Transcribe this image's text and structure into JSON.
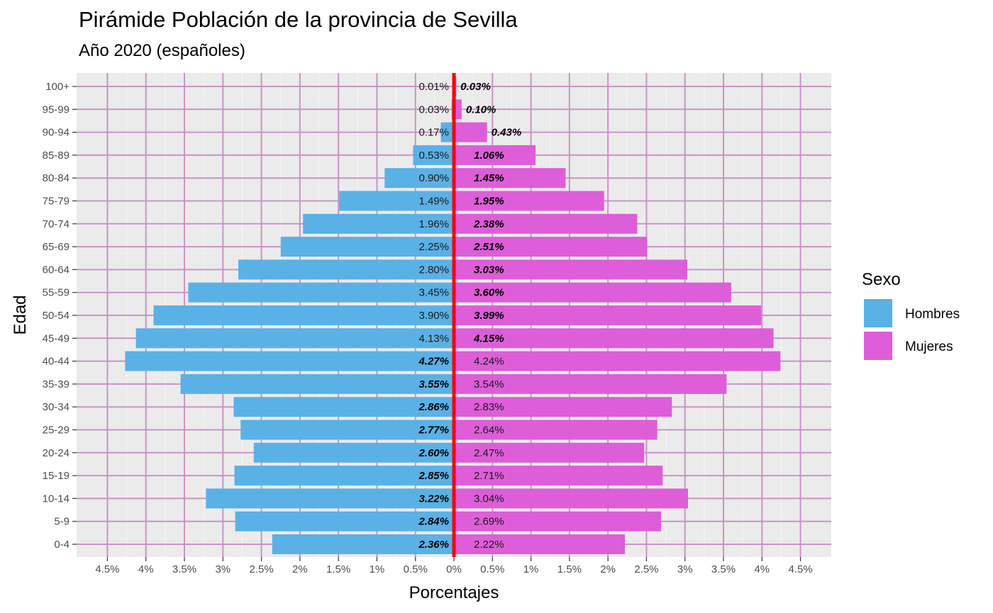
{
  "title": "Pirámide Población de la provincia de Sevilla",
  "subtitle": "Año 2020  (españoles)",
  "colors": {
    "hombres": "#5ab1e6",
    "mujeres": "#dd5ed8",
    "center_line": "#ff0000",
    "grid": "#c994c7",
    "panel_bg": "#ebebeb"
  },
  "chart_data": {
    "type": "bar",
    "orientation": "horizontal-population-pyramid",
    "title": "Pirámide Población de la provincia de Sevilla",
    "subtitle": "Año 2020  (españoles)",
    "xlabel": "Porcentajes",
    "ylabel": "Edad",
    "xlim": [
      -4.9,
      4.9
    ],
    "x_ticks": [
      -4.5,
      -4,
      -3.5,
      -3,
      -2.5,
      -2,
      -1.5,
      -1,
      -0.5,
      0,
      0.5,
      1,
      1.5,
      2,
      2.5,
      3,
      3.5,
      4,
      4.5
    ],
    "x_tick_labels": [
      "4.5%",
      "4%",
      "3.5%",
      "3%",
      "2.5%",
      "2%",
      "1.5%",
      "1%",
      "0.5%",
      "0%",
      "0.5%",
      "1%",
      "1.5%",
      "2%",
      "2.5%",
      "3%",
      "3.5%",
      "4%",
      "4.5%"
    ],
    "categories": [
      "0-4",
      "5-9",
      "10-14",
      "15-19",
      "20-24",
      "25-29",
      "30-34",
      "35-39",
      "40-44",
      "45-49",
      "50-54",
      "55-59",
      "60-64",
      "65-69",
      "70-74",
      "75-79",
      "80-84",
      "85-89",
      "90-94",
      "95-99",
      "100+"
    ],
    "series": [
      {
        "name": "Hombres",
        "values": [
          2.36,
          2.84,
          3.22,
          2.85,
          2.6,
          2.77,
          2.86,
          3.55,
          4.27,
          4.13,
          3.9,
          3.45,
          2.8,
          2.25,
          1.96,
          1.49,
          0.9,
          0.53,
          0.17,
          0.03,
          0.01
        ],
        "labels": [
          "2.36%",
          "2.84%",
          "3.22%",
          "2.85%",
          "2.60%",
          "2.77%",
          "2.86%",
          "3.55%",
          "4.27%",
          "4.13%",
          "3.90%",
          "3.45%",
          "2.80%",
          "2.25%",
          "1.96%",
          "1.49%",
          "0.90%",
          "0.53%",
          "0.17%",
          "0.03%",
          "0.01%"
        ],
        "label_bold": [
          true,
          true,
          true,
          true,
          true,
          true,
          true,
          true,
          true,
          false,
          false,
          false,
          false,
          false,
          false,
          false,
          false,
          false,
          false,
          false,
          false
        ]
      },
      {
        "name": "Mujeres",
        "values": [
          2.22,
          2.69,
          3.04,
          2.71,
          2.47,
          2.64,
          2.83,
          3.54,
          4.24,
          4.15,
          3.99,
          3.6,
          3.03,
          2.51,
          2.38,
          1.95,
          1.45,
          1.06,
          0.43,
          0.1,
          0.03
        ],
        "labels": [
          "2.22%",
          "2.69%",
          "3.04%",
          "2.71%",
          "2.47%",
          "2.64%",
          "2.83%",
          "3.54%",
          "4.24%",
          "4.15%",
          "3.99%",
          "3.60%",
          "3.03%",
          "2.51%",
          "2.38%",
          "1.95%",
          "1.45%",
          "1.06%",
          "0.43%",
          "0.10%",
          "0.03%"
        ],
        "label_bold": [
          false,
          false,
          false,
          false,
          false,
          false,
          false,
          false,
          false,
          true,
          true,
          true,
          true,
          true,
          true,
          true,
          true,
          true,
          true,
          true,
          true
        ]
      }
    ],
    "legend": {
      "title": "Sexo",
      "position": "right",
      "entries": [
        "Hombres",
        "Mujeres"
      ]
    },
    "grid": true
  }
}
